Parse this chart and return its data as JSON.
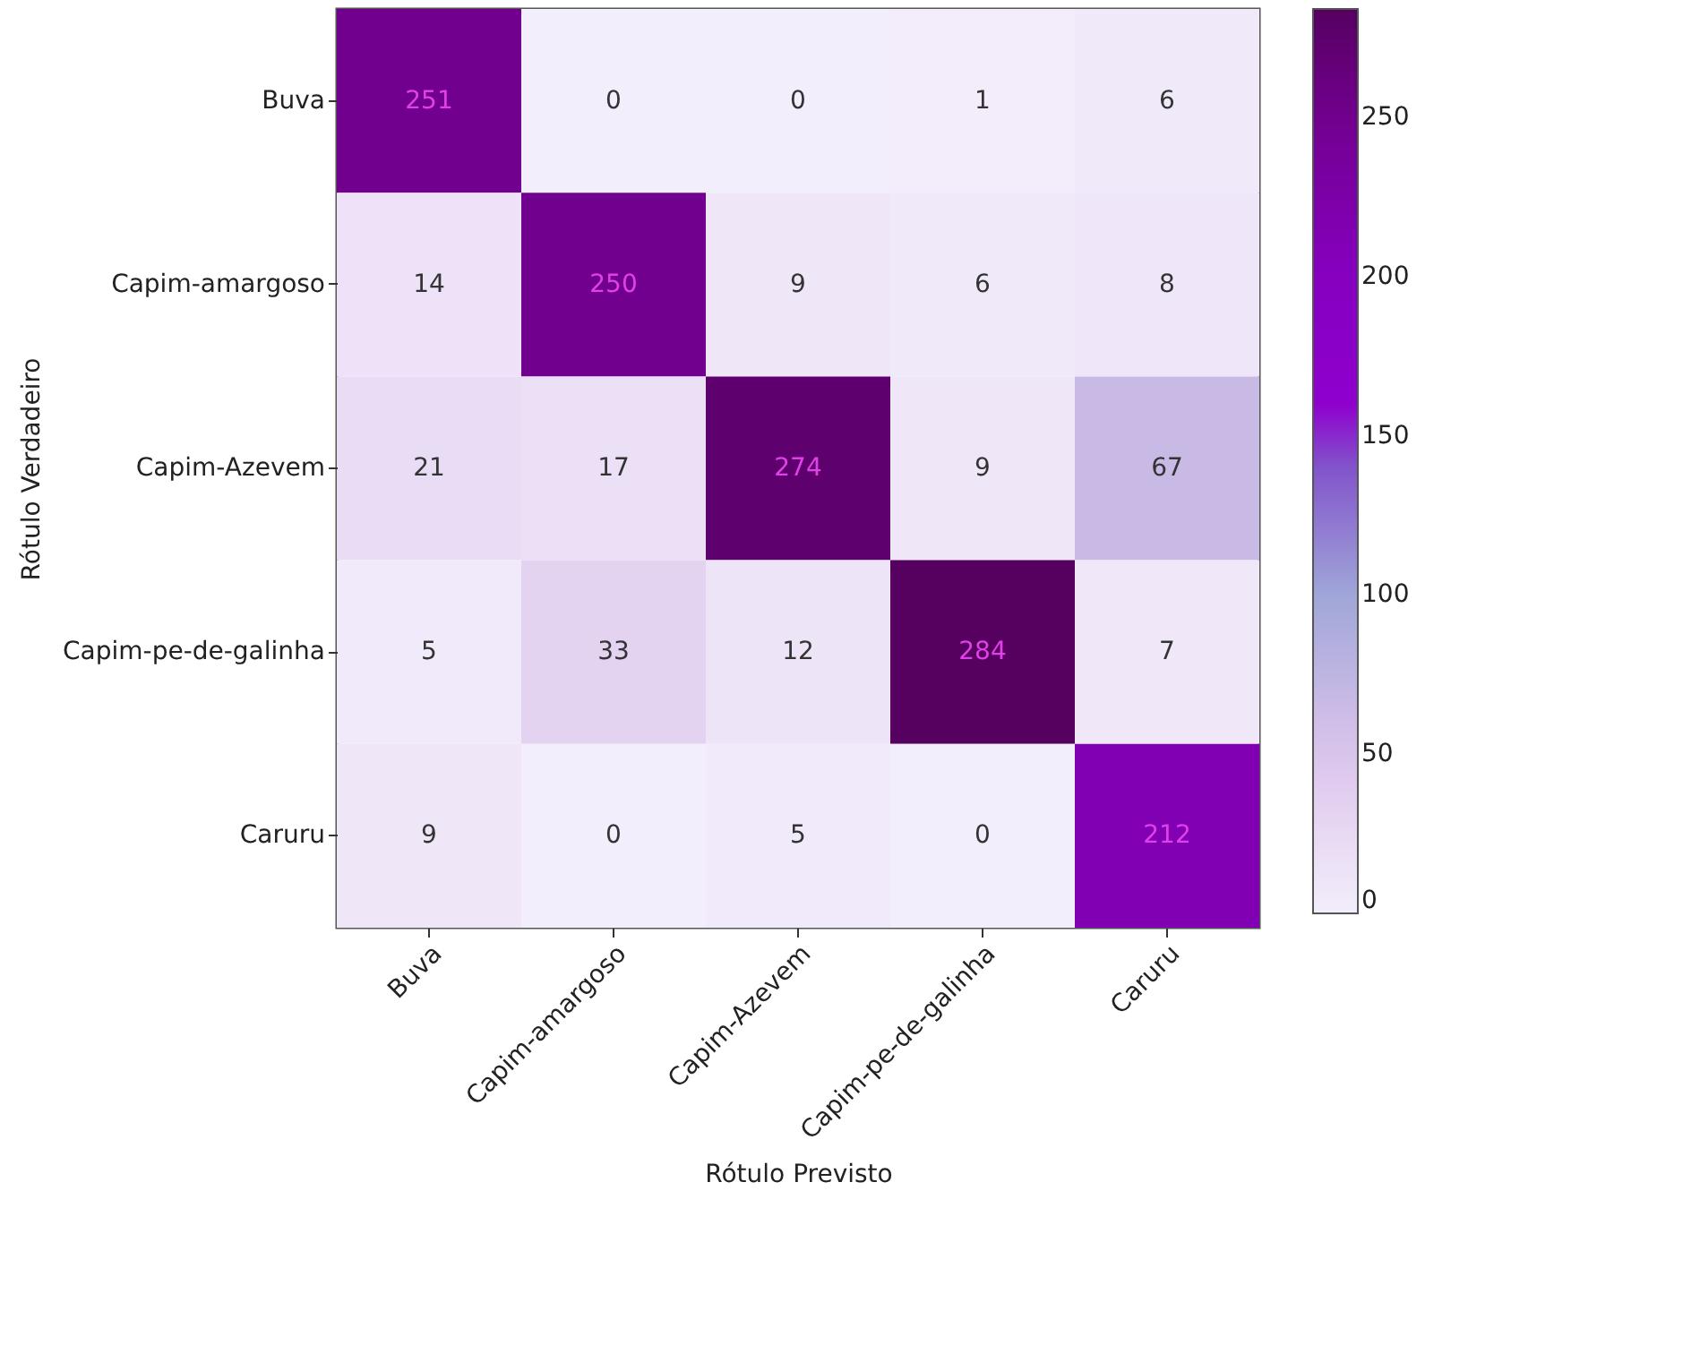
{
  "chart_data": {
    "type": "heatmap",
    "xlabel": "Rótulo Previsto",
    "ylabel": "Rótulo Verdadeiro",
    "categories": [
      "Buva",
      "Capim-amargoso",
      "Capim-Azevem",
      "Capim-pe-de-galinha",
      "Caruru"
    ],
    "y_categories": [
      "Buva",
      "Capim-amargoso",
      "Capim-Azevem",
      "Capim-pe-de-galinha",
      "Caruru"
    ],
    "cells": [
      [
        251,
        0,
        0,
        1,
        6
      ],
      [
        14,
        250,
        9,
        6,
        8
      ],
      [
        21,
        17,
        274,
        9,
        67
      ],
      [
        5,
        33,
        12,
        284,
        7
      ],
      [
        9,
        0,
        5,
        0,
        212
      ]
    ],
    "data_labels": true,
    "clim": [
      0,
      284
    ],
    "cticks": [
      0,
      50,
      100,
      150,
      200,
      250
    ]
  }
}
